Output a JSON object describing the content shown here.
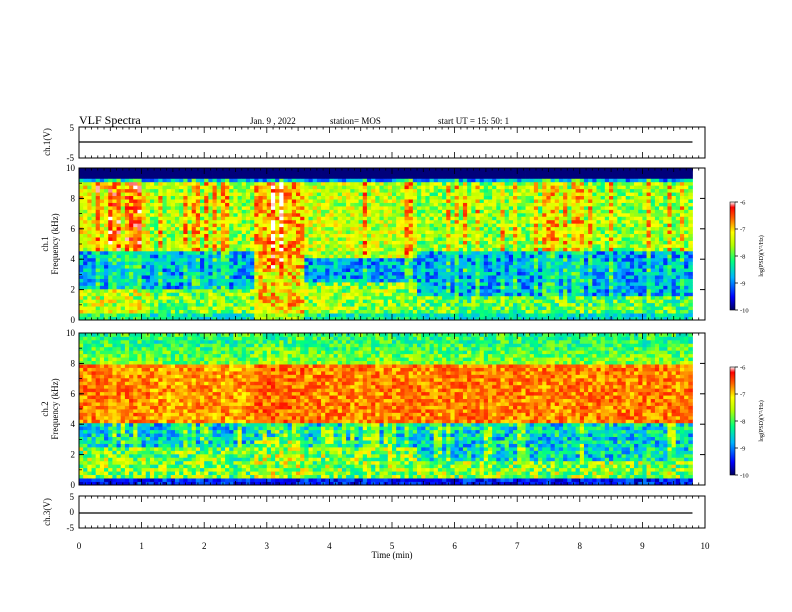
{
  "header": {
    "title": "VLF Spectra",
    "date": "Jan. 9 , 2022",
    "station": "station= MOS",
    "start": "start UT = 15: 50: 1"
  },
  "chart_data": [
    {
      "id": "ch1_waveform",
      "type": "line",
      "ylabel": "ch.1(V)",
      "ylim": [
        -5,
        5
      ],
      "yticks": [
        "5",
        "-5"
      ],
      "series": [
        {
          "x": [
            0,
            9.8
          ],
          "y": [
            0,
            0
          ]
        }
      ]
    },
    {
      "id": "ch1_spectrogram",
      "type": "heatmap",
      "ylabel": "ch.1",
      "ylabel2": "Frequency (kHz)",
      "ylim": [
        0,
        10
      ],
      "yticks": [
        "0",
        "2",
        "4",
        "6",
        "8",
        "10"
      ],
      "colorbar": {
        "label": "log(PSD)(V²/Hz)",
        "range": [
          -10,
          -6
        ],
        "ticks": [
          "-6",
          "-7",
          "-8",
          "-9",
          "-10"
        ]
      },
      "segments": [
        {
          "t": [
            0,
            1.15
          ],
          "upper_band_khz": [
            4.5,
            9.0
          ],
          "lower_band_khz": [
            0.4,
            2.0
          ],
          "level": -7.3
        },
        {
          "t": [
            1.15,
            2.8
          ],
          "upper_band_khz": [
            4.5,
            9.0
          ],
          "lower_band_khz": [
            0.4,
            2.0
          ],
          "level": -7.6
        },
        {
          "t": [
            2.8,
            3.6
          ],
          "upper_band_khz": [
            3.5,
            9.0
          ],
          "lower_band_khz": [
            0.4,
            3.5
          ],
          "level": -6.9
        },
        {
          "t": [
            3.6,
            5.4
          ],
          "upper_band_khz": [
            4.0,
            9.0
          ],
          "lower_band_khz": [
            0.4,
            2.5
          ],
          "level": -7.5
        },
        {
          "t": [
            5.4,
            9.8
          ],
          "upper_band_khz": [
            4.5,
            9.0
          ],
          "lower_band_khz": [
            0.4,
            1.5
          ],
          "level": -7.7
        }
      ]
    },
    {
      "id": "ch2_spectrogram",
      "type": "heatmap",
      "ylabel": "ch.2",
      "ylabel2": "Frequency (kHz)",
      "ylim": [
        0,
        10
      ],
      "yticks": [
        "0",
        "2",
        "4",
        "6",
        "8",
        "10"
      ],
      "colorbar": {
        "label": "log(PSD)(V²/Hz)",
        "range": [
          -10,
          -6
        ],
        "ticks": [
          "-6",
          "-7",
          "-8",
          "-9",
          "-10"
        ]
      },
      "segments": [
        {
          "t": [
            0,
            1.15
          ],
          "peak_band_khz": [
            4.0,
            8.0
          ],
          "lower_band_khz": [
            0.4,
            2.5
          ],
          "level": -6.7
        },
        {
          "t": [
            1.15,
            2.8
          ],
          "peak_band_khz": [
            4.0,
            8.0
          ],
          "lower_band_khz": [
            0.4,
            2.5
          ],
          "level": -6.8
        },
        {
          "t": [
            2.8,
            3.6
          ],
          "peak_band_khz": [
            4.0,
            8.0
          ],
          "lower_band_khz": [
            0.4,
            3.0
          ],
          "level": -6.6
        },
        {
          "t": [
            3.6,
            5.4
          ],
          "peak_band_khz": [
            4.0,
            8.0
          ],
          "lower_band_khz": [
            0.4,
            2.5
          ],
          "level": -6.7
        },
        {
          "t": [
            5.4,
            9.8
          ],
          "peak_band_khz": [
            4.0,
            8.0
          ],
          "lower_band_khz": [
            0.4,
            1.5
          ],
          "level": -6.7
        }
      ]
    },
    {
      "id": "ch3_waveform",
      "type": "line",
      "ylabel": "ch.3(V)",
      "ylim": [
        -5,
        5
      ],
      "yticks": [
        "5",
        "0",
        "-5"
      ],
      "xlabel": "Time (min)",
      "xlim": [
        0,
        10
      ],
      "xticks": [
        "0",
        "1",
        "2",
        "3",
        "4",
        "5",
        "6",
        "7",
        "8",
        "9",
        "10"
      ],
      "series": [
        {
          "x": [
            0,
            9.8
          ],
          "y": [
            0,
            0
          ]
        }
      ]
    }
  ]
}
